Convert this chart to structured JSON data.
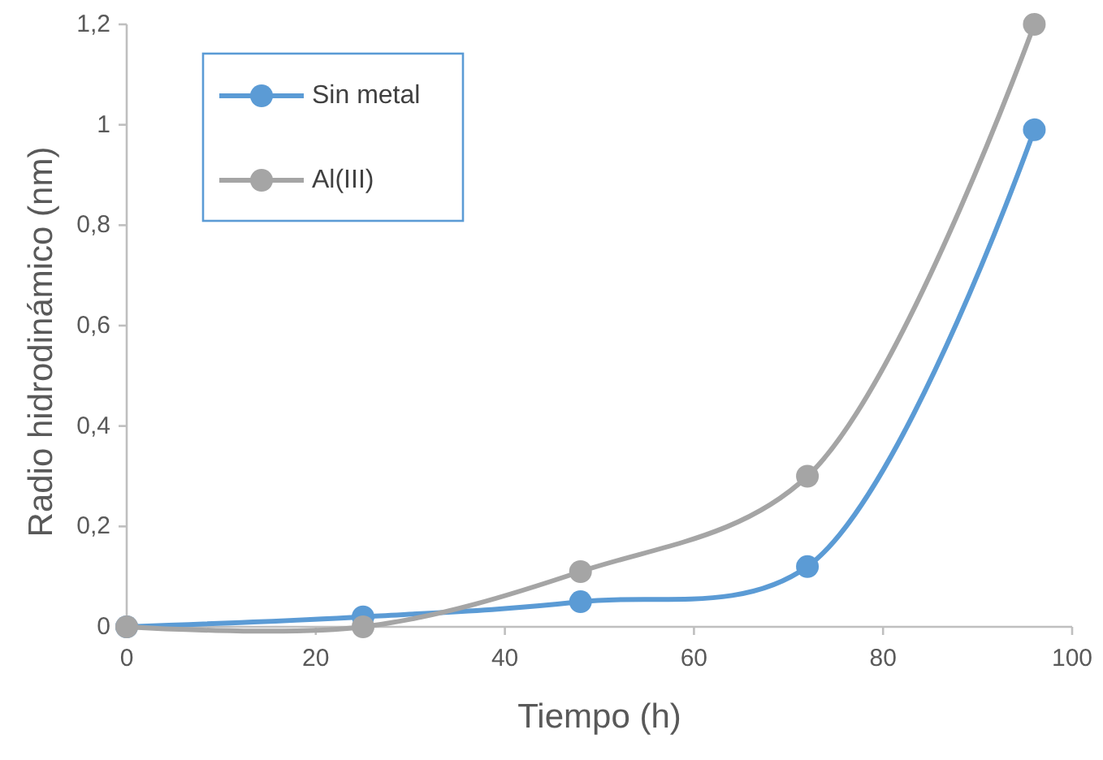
{
  "chart_data": {
    "type": "line",
    "xlabel": "Tiempo (h)",
    "ylabel": "Radio hidrodinámico (nm)",
    "x": [
      0,
      25,
      48,
      72,
      96
    ],
    "series": [
      {
        "name": "Sin metal",
        "color": "#5b9bd5",
        "values": [
          0,
          0.02,
          0.05,
          0.12,
          0.99
        ]
      },
      {
        "name": "Al(III)",
        "color": "#a5a5a5",
        "values": [
          0,
          0,
          0.11,
          0.3,
          1.2
        ]
      }
    ],
    "xlim": [
      0,
      100
    ],
    "xticks": [
      0,
      20,
      40,
      60,
      80,
      100
    ],
    "ylim": [
      0,
      1.2
    ],
    "yticks": [
      0,
      {
        "value": 0.2,
        "label": "0,2"
      },
      {
        "value": 0.4,
        "label": "0,4"
      },
      {
        "value": 0.6,
        "label": "0,6"
      },
      {
        "value": 0.8,
        "label": "0,8"
      },
      1,
      {
        "value": 1.2,
        "label": "1,2"
      }
    ],
    "grid": false,
    "legend": "top left",
    "marker": "circle",
    "line_style": "solid"
  }
}
